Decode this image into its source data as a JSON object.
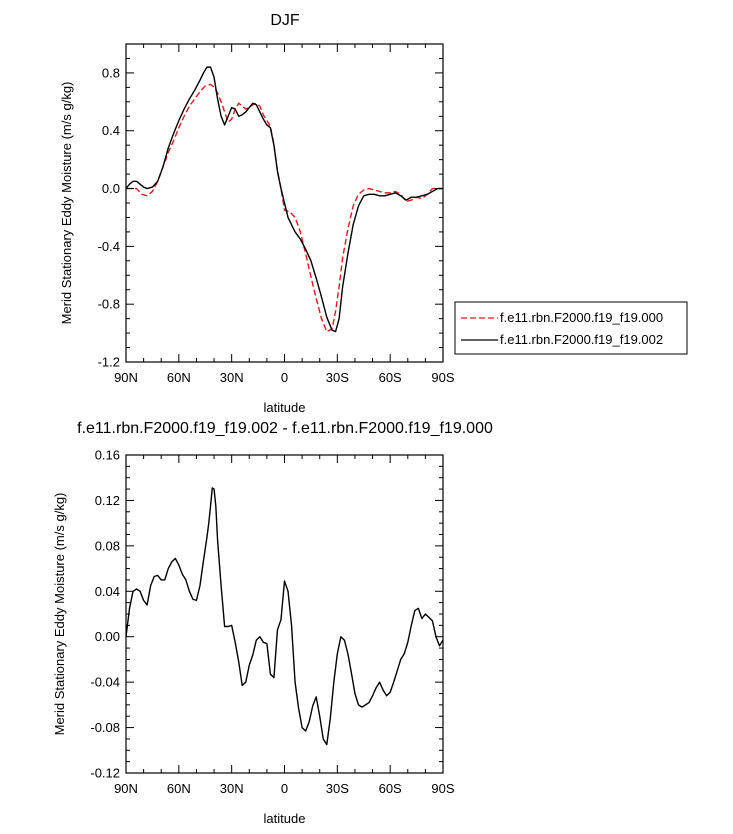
{
  "chart_data": [
    {
      "type": "line",
      "title": "DJF",
      "xlabel": "latitude",
      "ylabel": "Merid Stationary Eddy Moisture (m/s g/kg)",
      "xlim": [
        90,
        -90
      ],
      "ylim": [
        -1.2,
        1.0
      ],
      "x_tick_values": [
        90,
        60,
        30,
        0,
        -30,
        -60,
        -90
      ],
      "x_tick_labels": [
        "90N",
        "60N",
        "30N",
        "0",
        "30S",
        "60S",
        "90S"
      ],
      "y_tick_values": [
        -1.2,
        -0.8,
        -0.4,
        0.0,
        0.4,
        0.8
      ],
      "y_tick_labels": [
        "-1.2",
        "-0.8",
        "-0.4",
        "0.0",
        "0.4",
        "0.8"
      ],
      "legend_position": "right",
      "series": [
        {
          "name": "f.e11.rbn.F2000.f19_f19.000",
          "color": "#e31a1c",
          "dash": "dashed",
          "x": [
            90,
            87,
            84,
            81,
            78,
            75,
            72,
            69,
            66,
            63,
            60,
            57,
            54,
            51,
            48,
            45,
            42,
            40,
            38,
            36,
            34,
            32,
            30,
            28,
            26,
            24,
            22,
            20,
            18,
            16,
            14,
            12,
            10,
            8,
            6,
            4,
            2,
            0,
            -3,
            -6,
            -9,
            -12,
            -15,
            -18,
            -21,
            -24,
            -27,
            -29,
            -31,
            -33,
            -36,
            -39,
            -42,
            -45,
            -48,
            -51,
            -54,
            -57,
            -60,
            -63,
            -66,
            -69,
            -72,
            -75,
            -78,
            -81,
            -84,
            -87,
            -90
          ],
          "y": [
            0.0,
            0.0,
            0.0,
            -0.04,
            -0.05,
            -0.02,
            0.05,
            0.15,
            0.25,
            0.33,
            0.42,
            0.5,
            0.57,
            0.62,
            0.67,
            0.71,
            0.72,
            0.7,
            0.66,
            0.6,
            0.53,
            0.46,
            0.48,
            0.55,
            0.59,
            0.57,
            0.55,
            0.56,
            0.58,
            0.59,
            0.57,
            0.51,
            0.47,
            0.43,
            0.3,
            0.12,
            0.0,
            -0.15,
            -0.16,
            -0.2,
            -0.3,
            -0.45,
            -0.61,
            -0.76,
            -0.9,
            -0.99,
            -0.97,
            -0.85,
            -0.68,
            -0.48,
            -0.28,
            -0.12,
            -0.04,
            -0.01,
            0.0,
            -0.01,
            -0.02,
            -0.03,
            -0.03,
            -0.02,
            -0.04,
            -0.09,
            -0.08,
            -0.06,
            -0.07,
            -0.04,
            0.0,
            0.0,
            0.0
          ]
        },
        {
          "name": "f.e11.rbn.F2000.f19_f19.002",
          "color": "#000000",
          "dash": "solid",
          "x": [
            90,
            88,
            86,
            84,
            82,
            80,
            78,
            75,
            72,
            69,
            66,
            63,
            60,
            57,
            54,
            51,
            48,
            46,
            44,
            42,
            40,
            38,
            36,
            34,
            32,
            30,
            28,
            26,
            24,
            22,
            20,
            18,
            16,
            14,
            12,
            10,
            8,
            6,
            4,
            2,
            0,
            -2,
            -4,
            -6,
            -9,
            -12,
            -15,
            -18,
            -21,
            -24,
            -27,
            -29,
            -31,
            -33,
            -36,
            -39,
            -42,
            -45,
            -48,
            -51,
            -54,
            -57,
            -60,
            -63,
            -66,
            -69,
            -72,
            -75,
            -78,
            -81,
            -84,
            -87,
            -90
          ],
          "y": [
            0.0,
            0.03,
            0.05,
            0.05,
            0.03,
            0.01,
            0.0,
            0.01,
            0.05,
            0.15,
            0.28,
            0.38,
            0.47,
            0.55,
            0.62,
            0.68,
            0.75,
            0.8,
            0.84,
            0.84,
            0.77,
            0.62,
            0.5,
            0.44,
            0.5,
            0.56,
            0.55,
            0.5,
            0.51,
            0.53,
            0.56,
            0.59,
            0.58,
            0.53,
            0.48,
            0.44,
            0.42,
            0.3,
            0.12,
            0.0,
            -0.1,
            -0.2,
            -0.25,
            -0.3,
            -0.35,
            -0.42,
            -0.5,
            -0.62,
            -0.75,
            -0.89,
            -0.98,
            -0.99,
            -0.9,
            -0.68,
            -0.45,
            -0.25,
            -0.12,
            -0.05,
            -0.04,
            -0.04,
            -0.05,
            -0.05,
            -0.04,
            -0.03,
            -0.05,
            -0.08,
            -0.06,
            -0.06,
            -0.05,
            -0.04,
            -0.02,
            0.0,
            0.0
          ]
        }
      ]
    },
    {
      "type": "line",
      "title": "f.e11.rbn.F2000.f19_f19.002 - f.e11.rbn.F2000.f19_f19.000",
      "xlabel": "latitude",
      "ylabel": "Merid Stationary Eddy Moisture (m/s g/kg)",
      "xlim": [
        90,
        -90
      ],
      "ylim": [
        -0.12,
        0.16
      ],
      "x_tick_values": [
        90,
        60,
        30,
        0,
        -30,
        -60,
        -90
      ],
      "x_tick_labels": [
        "90N",
        "60N",
        "30N",
        "0",
        "30S",
        "60S",
        "90S"
      ],
      "y_tick_values": [
        -0.12,
        -0.08,
        -0.04,
        0.0,
        0.04,
        0.08,
        0.12,
        0.16
      ],
      "y_tick_labels": [
        "-0.12",
        "-0.08",
        "-0.04",
        "0.00",
        "0.04",
        "0.08",
        "0.12",
        "0.16"
      ],
      "series": [
        {
          "color": "#000000",
          "dash": "solid",
          "x": [
            90,
            88,
            86,
            84,
            82,
            80,
            78,
            76,
            74,
            72,
            70,
            68,
            66,
            64,
            62,
            60,
            58,
            56,
            54,
            52,
            50,
            48,
            46,
            44,
            43,
            42,
            41,
            40,
            39,
            38,
            36,
            34,
            32,
            30,
            28,
            26,
            24,
            22,
            20,
            18,
            16,
            14,
            12,
            10,
            8,
            6,
            4,
            2,
            0,
            -2,
            -4,
            -6,
            -8,
            -10,
            -12,
            -14,
            -16,
            -18,
            -20,
            -22,
            -24,
            -26,
            -28,
            -30,
            -32,
            -34,
            -36,
            -38,
            -40,
            -42,
            -44,
            -46,
            -48,
            -50,
            -52,
            -54,
            -56,
            -58,
            -60,
            -62,
            -64,
            -66,
            -68,
            -70,
            -72,
            -74,
            -76,
            -78,
            -80,
            -82,
            -84,
            -86,
            -88,
            -90
          ],
          "y": [
            0.0,
            0.025,
            0.04,
            0.042,
            0.04,
            0.032,
            0.028,
            0.045,
            0.053,
            0.054,
            0.05,
            0.05,
            0.06,
            0.066,
            0.069,
            0.063,
            0.055,
            0.05,
            0.04,
            0.033,
            0.032,
            0.045,
            0.067,
            0.088,
            0.1,
            0.115,
            0.131,
            0.13,
            0.115,
            0.085,
            0.045,
            0.009,
            0.009,
            0.01,
            -0.005,
            -0.022,
            -0.043,
            -0.04,
            -0.025,
            -0.016,
            -0.003,
            0.0,
            -0.005,
            -0.006,
            -0.033,
            -0.036,
            0.006,
            0.015,
            0.049,
            0.04,
            0.01,
            -0.04,
            -0.063,
            -0.08,
            -0.083,
            -0.075,
            -0.061,
            -0.053,
            -0.07,
            -0.09,
            -0.095,
            -0.072,
            -0.04,
            -0.015,
            0.0,
            -0.003,
            -0.015,
            -0.032,
            -0.05,
            -0.06,
            -0.062,
            -0.06,
            -0.058,
            -0.052,
            -0.045,
            -0.04,
            -0.047,
            -0.052,
            -0.049,
            -0.04,
            -0.03,
            -0.02,
            -0.015,
            -0.005,
            0.01,
            0.023,
            0.025,
            0.016,
            0.02,
            0.017,
            0.014,
            0.0,
            -0.008,
            -0.003
          ]
        }
      ]
    }
  ]
}
